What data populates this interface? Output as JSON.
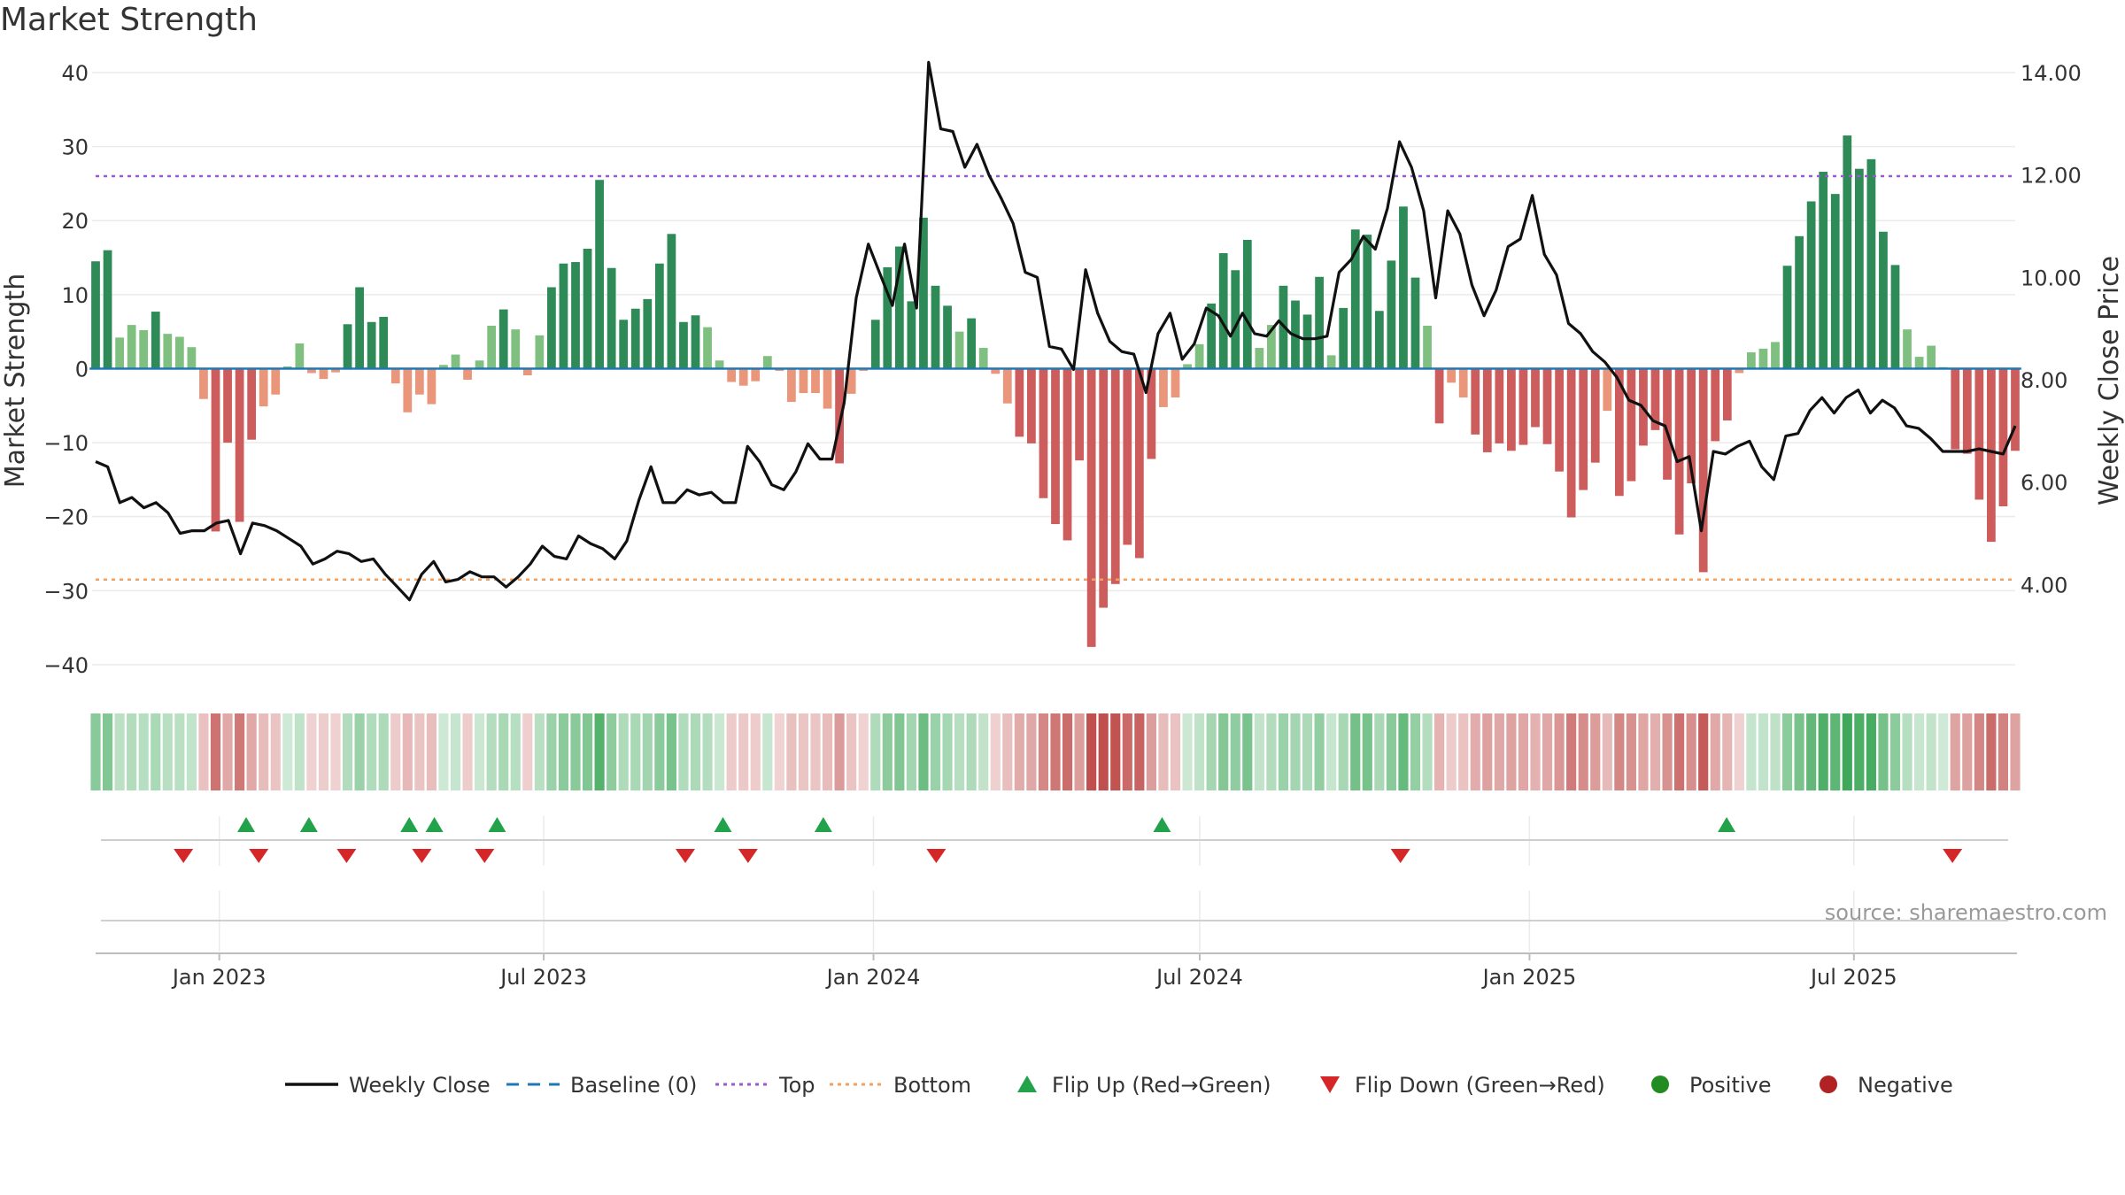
{
  "title": "Market Strength",
  "source": "source: sharemaestro.com",
  "chart_data": {
    "type": "bar",
    "ylabel_left": "Market Strength",
    "ylabel_right": "Weekly Close Price",
    "ylim_left": [
      -43,
      40
    ],
    "yticks_left": [
      40,
      30,
      20,
      10,
      0,
      -10,
      -20,
      -30,
      -40
    ],
    "ytick_labels_left": [
      "40",
      "30",
      "20",
      "10",
      "0",
      "−10",
      "−20",
      "−30",
      "−40"
    ],
    "ylim_right": [
      2.0,
      14.0
    ],
    "yticks_right": [
      14,
      12,
      10,
      8,
      6,
      4
    ],
    "ytick_labels_right": [
      "14.00",
      "12.00",
      "10.00",
      "8.00",
      "6.00",
      "4.00"
    ],
    "x_start": "2022-10-24",
    "x_end": "2025-09-29",
    "xticks": [
      "2023-01-01",
      "2023-07-01",
      "2024-01-01",
      "2024-07-01",
      "2025-01-01",
      "2025-07-01"
    ],
    "xtick_labels": [
      "Jan 2023",
      "Jul 2023",
      "Jan 2024",
      "Jul 2024",
      "Jan 2025",
      "Jul 2025"
    ],
    "top_level": 26,
    "bottom_level": -28.5,
    "baseline": 0,
    "strength": [
      14.5,
      16,
      4.2,
      5.9,
      5.2,
      7.7,
      4.7,
      4.3,
      2.9,
      -4.1,
      -22,
      -10,
      -20.7,
      -9.6,
      -5.1,
      -3.5,
      0.3,
      3.4,
      -0.6,
      -1.4,
      -0.5,
      6,
      11,
      6.3,
      7,
      -2,
      -5.9,
      -3.5,
      -4.8,
      0.5,
      1.9,
      -1.5,
      1.1,
      5.8,
      8,
      5.3,
      -0.9,
      4.5,
      11,
      14.2,
      14.4,
      16.2,
      25.5,
      13.6,
      6.6,
      8.1,
      9.4,
      14.2,
      18.2,
      6.3,
      7.2,
      5.6,
      1.1,
      -1.8,
      -2.3,
      -1.7,
      1.7,
      -0.3,
      -4.5,
      -3.3,
      -3.3,
      -5.4,
      -12.8,
      -3.4,
      -0.3,
      6.6,
      13.7,
      16.5,
      9.1,
      20.4,
      11.2,
      8.5,
      5,
      6.8,
      2.8,
      -0.7,
      -4.7,
      -9.2,
      -10.1,
      -17.5,
      -21,
      -23.2,
      -12.4,
      -37.6,
      -32.3,
      -29.1,
      -23.8,
      -25.6,
      -12.2,
      -5.2,
      -3.9,
      0.6,
      3.3,
      8.8,
      15.6,
      13.3,
      17.4,
      2.8,
      5.9,
      11.2,
      9.2,
      7.3,
      12.4,
      1.8,
      8.2,
      18.8,
      18.1,
      7.8,
      14.6,
      21.9,
      12.3,
      5.8,
      -7.4,
      -1.9,
      -3.9,
      -8.9,
      -11.3,
      -10.1,
      -11.1,
      -10.3,
      -7.9,
      -10.2,
      -13.9,
      -20.1,
      -16.4,
      -12.7,
      -5.7,
      -17.2,
      -15.2,
      -10.4,
      -8.3,
      -15,
      -22.4,
      -15.5,
      -27.5,
      -9.8,
      -7,
      -0.6,
      2.2,
      2.7,
      3.6,
      13.9,
      17.9,
      22.6,
      26.6,
      23.6,
      31.5,
      27,
      28.3,
      18.5,
      14,
      5.3,
      1.6,
      3.1,
      0.2,
      -10.9,
      -11.5,
      -17.7,
      -23.4,
      -18.6,
      -11.1
    ],
    "weekly_close": [
      6.4,
      6.3,
      5.6,
      5.7,
      5.5,
      5.6,
      5.4,
      5,
      5.05,
      5.05,
      5.2,
      5.25,
      4.6,
      5.2,
      5.15,
      5.05,
      4.9,
      4.75,
      4.4,
      4.5,
      4.65,
      4.6,
      4.45,
      4.5,
      4.2,
      3.95,
      3.7,
      4.2,
      4.45,
      4.05,
      4.1,
      4.25,
      4.15,
      4.15,
      3.95,
      4.15,
      4.4,
      4.75,
      4.55,
      4.5,
      4.95,
      4.8,
      4.7,
      4.5,
      4.85,
      5.65,
      6.3,
      5.6,
      5.6,
      5.85,
      5.75,
      5.8,
      5.6,
      5.6,
      6.7,
      6.4,
      5.95,
      5.85,
      6.2,
      6.75,
      6.45,
      6.45,
      7.55,
      9.6,
      10.65,
      10.05,
      9.45,
      10.65,
      9.4,
      14.2,
      12.9,
      12.85,
      12.15,
      12.6,
      12,
      11.55,
      11.05,
      10.1,
      10,
      8.65,
      8.6,
      8.2,
      10.15,
      9.3,
      8.75,
      8.55,
      8.5,
      7.75,
      8.9,
      9.3,
      8.4,
      8.7,
      9.4,
      9.25,
      8.85,
      9.3,
      8.9,
      8.85,
      9.15,
      8.9,
      8.8,
      8.8,
      8.85,
      10.1,
      10.35,
      10.8,
      10.55,
      11.35,
      12.65,
      12.15,
      11.3,
      9.6,
      11.3,
      10.85,
      9.85,
      9.25,
      9.75,
      10.6,
      10.75,
      11.6,
      10.45,
      10.05,
      9.1,
      8.9,
      8.55,
      8.35,
      8.05,
      7.6,
      7.5,
      7.2,
      7.1,
      6.4,
      6.5,
      5.05,
      6.6,
      6.55,
      6.7,
      6.8,
      6.3,
      6.05,
      6.9,
      6.95,
      7.4,
      7.65,
      7.35,
      7.65,
      7.8,
      7.35,
      7.6,
      7.45,
      7.1,
      7.05,
      6.85,
      6.6,
      6.6,
      6.6,
      6.65,
      6.6,
      6.55,
      7.1
    ],
    "flip_up_dates": [
      "2023-01-16",
      "2023-02-20",
      "2023-04-17",
      "2023-05-01",
      "2023-06-05",
      "2023-10-09",
      "2023-12-04",
      "2024-06-10",
      "2025-04-21"
    ],
    "flip_down_dates": [
      "2022-12-12",
      "2023-01-23",
      "2023-03-13",
      "2023-04-24",
      "2023-05-29",
      "2023-09-18",
      "2023-10-23",
      "2024-02-05",
      "2024-10-21",
      "2025-08-25"
    ],
    "legend": [
      {
        "label": "Weekly Close",
        "kind": "line",
        "color": "#111111"
      },
      {
        "label": "Baseline (0)",
        "kind": "dash",
        "color": "#1f77b4"
      },
      {
        "label": "Top",
        "kind": "dot",
        "color": "#9b59d0"
      },
      {
        "label": "Bottom",
        "kind": "dot",
        "color": "#f0a060"
      },
      {
        "label": "Flip Up (Red→Green)",
        "kind": "tri-up",
        "color": "#22a24a"
      },
      {
        "label": "Flip Down (Green→Red)",
        "kind": "tri-down",
        "color": "#d62728"
      },
      {
        "label": "Positive",
        "kind": "circle",
        "color": "#228b22"
      },
      {
        "label": "Negative",
        "kind": "circle",
        "color": "#b22222"
      }
    ]
  },
  "colors": {
    "pos_strong": "#2e8b57",
    "pos_weak": "#7fbf7f",
    "neg_strong": "#cd5c5c",
    "neg_weak": "#e9967a",
    "baseline": "#1f77b4",
    "top": "#9b59d0",
    "bottom": "#f0a060",
    "grid": "#ebebeb",
    "close_line": "#111111",
    "flip_up": "#22a24a",
    "flip_down": "#d62728"
  }
}
